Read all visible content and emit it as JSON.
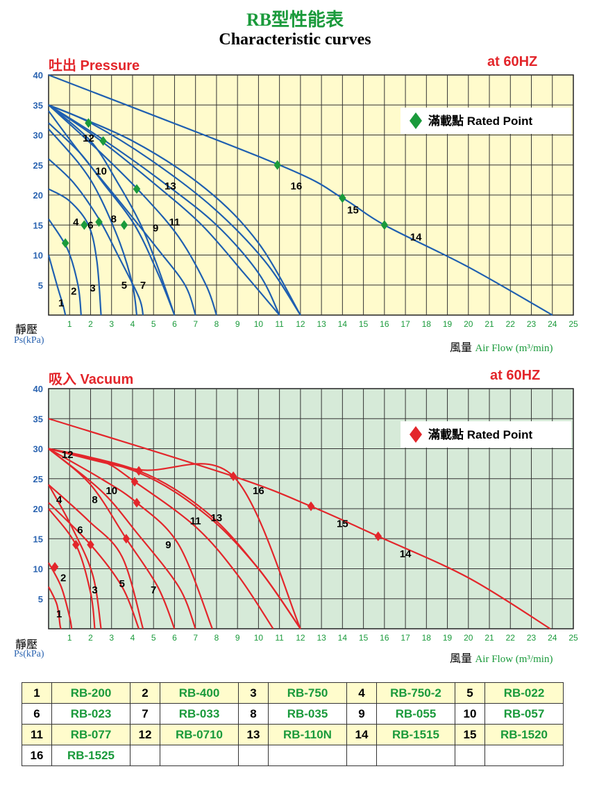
{
  "header": {
    "title_cn": "RB型性能表",
    "title_en": "Characteristic curves"
  },
  "colors": {
    "pressure_bg": "#fffbcc",
    "vacuum_bg": "#d6ead8",
    "pressure_curve": "#1f5fb0",
    "vacuum_curve": "#e3262b",
    "rated_pressure": "#1a9a3b",
    "rated_vacuum": "#e3262b",
    "axis_y_labels": "#2a63b0",
    "axis_x_labels": "#1a9a3b"
  },
  "chart_data": [
    {
      "type": "line",
      "section_label": "吐出 Pressure",
      "frequency": "at 60HZ",
      "ylabel": "靜壓",
      "ylabel_unit": "Ps(kPa)",
      "xlabel_cn": "風量",
      "xlabel_en": "Air Flow (m³/min)",
      "xlim": [
        0,
        25
      ],
      "ylim": [
        0,
        40
      ],
      "xticks": [
        1,
        2,
        3,
        4,
        5,
        6,
        7,
        8,
        9,
        10,
        11,
        12,
        13,
        14,
        15,
        16,
        17,
        18,
        19,
        20,
        21,
        22,
        23,
        24,
        25
      ],
      "yticks": [
        5,
        10,
        15,
        20,
        25,
        30,
        35,
        40
      ],
      "grid": true,
      "legend": {
        "label": "滿載點 Rated Point",
        "marker": "diamond",
        "placement": "top-right"
      },
      "series": [
        {
          "name": "1",
          "points": [
            [
              0,
              10
            ],
            [
              0.4,
              5
            ],
            [
              0.7,
              1.5
            ],
            [
              0.8,
              0
            ]
          ],
          "rated": null
        },
        {
          "name": "2",
          "points": [
            [
              0,
              16
            ],
            [
              0.9,
              11
            ],
            [
              1.4,
              5
            ],
            [
              1.55,
              0
            ]
          ],
          "rated": [
            0.8,
            12
          ]
        },
        {
          "name": "3",
          "points": [
            [
              0,
              21
            ],
            [
              1.0,
              19
            ],
            [
              1.9,
              15
            ],
            [
              2.3,
              9
            ],
            [
              2.5,
              0
            ]
          ],
          "rated": [
            1.7,
            15
          ]
        },
        {
          "name": "4",
          "points": [
            [
              0,
              26
            ],
            [
              1.2,
              22
            ],
            [
              2.4,
              16
            ],
            [
              3.3,
              10
            ],
            [
              4.3,
              3
            ],
            [
              4.5,
              0
            ]
          ],
          "rated": null
        },
        {
          "name": "5",
          "points": [
            [
              0,
              31
            ],
            [
              1.5,
              25
            ],
            [
              2.4,
              20
            ],
            [
              3.4,
              12
            ],
            [
              4.0,
              5
            ],
            [
              4.2,
              0
            ]
          ],
          "rated": [
            2.4,
            15.5
          ]
        },
        {
          "name": "6",
          "points": [
            [
              0,
              32
            ],
            [
              1.5,
              27
            ],
            [
              2.6,
              22
            ],
            [
              4.1,
              15
            ],
            [
              5.2,
              7
            ],
            [
              6.0,
              0
            ]
          ],
          "rated": null
        },
        {
          "name": "7",
          "points": [
            [
              0,
              35
            ],
            [
              2,
              29
            ],
            [
              3.3,
              22
            ],
            [
              4.4,
              15
            ],
            [
              5.2,
              8
            ],
            [
              6.0,
              0
            ]
          ],
          "rated": [
            3.6,
            15
          ]
        },
        {
          "name": "8",
          "points": [
            [
              0,
              34
            ],
            [
              1.5,
              27
            ],
            [
              3.6,
              18
            ],
            [
              5.2,
              11
            ],
            [
              6.5,
              5
            ],
            [
              7,
              0
            ]
          ],
          "rated": null
        },
        {
          "name": "9",
          "points": [
            [
              0,
              35
            ],
            [
              2.5,
              27
            ],
            [
              4.5,
              20
            ],
            [
              6.2,
              13
            ],
            [
              7.5,
              5
            ],
            [
              8,
              0
            ]
          ],
          "rated": [
            4.2,
            21
          ]
        },
        {
          "name": "10",
          "points": [
            [
              0,
              35
            ],
            [
              2.5,
              29
            ],
            [
              5.0,
              22
            ],
            [
              7.3,
              15
            ],
            [
              9.3,
              7
            ],
            [
              11,
              0
            ]
          ],
          "rated": [
            2.6,
            29
          ]
        },
        {
          "name": "11",
          "points": [
            [
              0,
              35
            ],
            [
              2.7,
              29
            ],
            [
              5.5,
              22
            ],
            [
              8,
              15
            ],
            [
              10,
              7
            ],
            [
              11,
              0
            ]
          ],
          "rated": null
        },
        {
          "name": "12",
          "points": [
            [
              0,
              35
            ],
            [
              2,
              32
            ],
            [
              4.8,
              26
            ],
            [
              7.8,
              18
            ],
            [
              10.3,
              9
            ],
            [
              12,
              0
            ]
          ],
          "rated": [
            1.9,
            32
          ]
        },
        {
          "name": "13",
          "points": [
            [
              0,
              35
            ],
            [
              4,
              29
            ],
            [
              7.5,
              21
            ],
            [
              10,
              12
            ],
            [
              12,
              0
            ]
          ],
          "rated": null
        },
        {
          "name": "16",
          "points": [
            [
              0,
              40
            ],
            [
              11,
              25
            ],
            [
              14,
              19.5
            ],
            [
              16,
              15
            ],
            [
              20,
              8
            ],
            [
              24,
              0
            ]
          ],
          "rated": [
            10.9,
            25
          ]
        },
        {
          "name": "15",
          "points": [
            [
              14,
              19.5
            ]
          ],
          "rated": [
            14,
            19.5
          ]
        },
        {
          "name": "14",
          "points": [
            [
              16,
              15
            ]
          ],
          "rated": [
            16,
            15
          ]
        }
      ],
      "curve_labels": [
        {
          "text": "1",
          "x": 0.6,
          "y": 2
        },
        {
          "text": "2",
          "x": 1.2,
          "y": 4
        },
        {
          "text": "3",
          "x": 2.1,
          "y": 4.5
        },
        {
          "text": "4",
          "x": 1.3,
          "y": 15.5
        },
        {
          "text": "5",
          "x": 3.6,
          "y": 5
        },
        {
          "text": "6",
          "x": 2.0,
          "y": 15
        },
        {
          "text": "7",
          "x": 4.5,
          "y": 5
        },
        {
          "text": "8",
          "x": 3.1,
          "y": 16
        },
        {
          "text": "9",
          "x": 5.1,
          "y": 14.5
        },
        {
          "text": "10",
          "x": 2.5,
          "y": 24
        },
        {
          "text": "11",
          "x": 6.0,
          "y": 15.5
        },
        {
          "text": "12",
          "x": 1.9,
          "y": 29.5
        },
        {
          "text": "13",
          "x": 5.8,
          "y": 21.5
        },
        {
          "text": "14",
          "x": 17.5,
          "y": 13
        },
        {
          "text": "15",
          "x": 14.5,
          "y": 17.5
        },
        {
          "text": "16",
          "x": 11.8,
          "y": 21.5
        }
      ]
    },
    {
      "type": "line",
      "section_label": "吸入 Vacuum",
      "frequency": "at 60HZ",
      "ylabel": "靜壓",
      "ylabel_unit": "Ps(kPa)",
      "xlabel_cn": "風量",
      "xlabel_en": "Air Flow (m³/min)",
      "xlim": [
        0,
        25
      ],
      "ylim": [
        0,
        40
      ],
      "xticks": [
        1,
        2,
        3,
        4,
        5,
        6,
        7,
        8,
        9,
        10,
        11,
        12,
        13,
        14,
        15,
        16,
        17,
        18,
        19,
        20,
        21,
        22,
        23,
        24,
        25
      ],
      "yticks": [
        5,
        10,
        15,
        20,
        25,
        30,
        35,
        40
      ],
      "grid": true,
      "legend": {
        "label": "滿載點 Rated Point",
        "marker": "diamond",
        "placement": "top-right"
      },
      "series": [
        {
          "name": "1",
          "points": [
            [
              0,
              7
            ],
            [
              0.4,
              4
            ],
            [
              0.55,
              0.5
            ],
            [
              0.6,
              0
            ]
          ],
          "rated": null
        },
        {
          "name": "2",
          "points": [
            [
              0,
              11
            ],
            [
              0.6,
              7
            ],
            [
              1.0,
              2
            ],
            [
              1.1,
              0
            ]
          ],
          "rated": [
            0.3,
            10.3
          ]
        },
        {
          "name": "3",
          "points": [
            [
              0,
              20
            ],
            [
              1.3,
              14
            ],
            [
              2.0,
              6
            ],
            [
              2.2,
              0
            ]
          ],
          "rated": [
            1.3,
            14
          ]
        },
        {
          "name": "4",
          "points": [
            [
              0,
              24
            ],
            [
              1.1,
              17
            ],
            [
              2.1,
              9
            ],
            [
              2.5,
              0
            ]
          ],
          "rated": null
        },
        {
          "name": "5",
          "points": [
            [
              0,
              21
            ],
            [
              2.0,
              14
            ],
            [
              3.5,
              7
            ],
            [
              4.3,
              0
            ]
          ],
          "rated": [
            2.0,
            14
          ]
        },
        {
          "name": "6",
          "points": [
            [
              0,
              24
            ],
            [
              1.9,
              18
            ],
            [
              3.5,
              12
            ],
            [
              4.5,
              0
            ]
          ],
          "rated": null
        },
        {
          "name": "7",
          "points": [
            [
              0,
              30
            ],
            [
              2.0,
              24
            ],
            [
              3.7,
              15
            ],
            [
              5.2,
              7
            ],
            [
              6,
              0
            ]
          ],
          "rated": [
            3.7,
            15
          ]
        },
        {
          "name": "8",
          "points": [
            [
              0,
              30
            ],
            [
              2.5,
              23
            ],
            [
              4.2,
              16
            ],
            [
              6.2,
              7
            ],
            [
              7,
              0
            ]
          ],
          "rated": null
        },
        {
          "name": "9",
          "points": [
            [
              0,
              30
            ],
            [
              2.5,
              25
            ],
            [
              4.2,
              21
            ],
            [
              6.2,
              14
            ],
            [
              7.8,
              0
            ]
          ],
          "rated": [
            4.2,
            21
          ]
        },
        {
          "name": "10",
          "points": [
            [
              0,
              30
            ],
            [
              2.5,
              28
            ],
            [
              4.1,
              24.5
            ],
            [
              7,
              17
            ],
            [
              9,
              9
            ],
            [
              10.7,
              0
            ]
          ],
          "rated": [
            4.1,
            24.5
          ]
        },
        {
          "name": "11",
          "points": [
            [
              0,
              30
            ],
            [
              4.3,
              26
            ],
            [
              7.5,
              19
            ],
            [
              10,
              10
            ],
            [
              12,
              0
            ]
          ],
          "rated": null
        },
        {
          "name": "12",
          "points": [
            [
              0,
              30
            ],
            [
              4.3,
              26.3
            ],
            [
              7.5,
              19.5
            ],
            [
              10,
              10
            ],
            [
              12,
              0
            ]
          ],
          "rated": [
            4.3,
            26.3
          ]
        },
        {
          "name": "13",
          "points": [
            [
              0,
              30
            ],
            [
              4.3,
              26.5
            ],
            [
              8.8,
              25.4
            ],
            [
              12,
              0
            ]
          ],
          "rated": null
        },
        {
          "name": "16",
          "points": [
            [
              0,
              35
            ],
            [
              8.8,
              25.4
            ],
            [
              12.5,
              20.4
            ],
            [
              15.7,
              15.4
            ],
            [
              20,
              8.5
            ],
            [
              23.9,
              0
            ]
          ],
          "rated": [
            8.8,
            25.4
          ]
        },
        {
          "name": "15",
          "points": [
            [
              12.5,
              20.4
            ]
          ],
          "rated": [
            12.5,
            20.4
          ]
        },
        {
          "name": "14",
          "points": [
            [
              15.7,
              15.4
            ]
          ],
          "rated": [
            15.7,
            15.4
          ]
        }
      ],
      "curve_labels": [
        {
          "text": "1",
          "x": 0.5,
          "y": 2.5
        },
        {
          "text": "2",
          "x": 0.7,
          "y": 8.5
        },
        {
          "text": "3",
          "x": 2.2,
          "y": 6.5
        },
        {
          "text": "4",
          "x": 0.5,
          "y": 21.5
        },
        {
          "text": "5",
          "x": 3.5,
          "y": 7.5
        },
        {
          "text": "6",
          "x": 1.5,
          "y": 16.5
        },
        {
          "text": "7",
          "x": 5.0,
          "y": 6.5
        },
        {
          "text": "8",
          "x": 2.2,
          "y": 21.5
        },
        {
          "text": "9",
          "x": 5.7,
          "y": 14
        },
        {
          "text": "10",
          "x": 3.0,
          "y": 23
        },
        {
          "text": "11",
          "x": 7.0,
          "y": 18
        },
        {
          "text": "12",
          "x": 0.9,
          "y": 29
        },
        {
          "text": "13",
          "x": 8.0,
          "y": 18.5
        },
        {
          "text": "14",
          "x": 17.0,
          "y": 12.5
        },
        {
          "text": "15",
          "x": 14.0,
          "y": 17.5
        },
        {
          "text": "16",
          "x": 10.0,
          "y": 23
        }
      ]
    }
  ],
  "model_table": {
    "rows": [
      [
        {
          "n": "1",
          "m": "RB-200"
        },
        {
          "n": "2",
          "m": "RB-400"
        },
        {
          "n": "3",
          "m": "RB-750"
        },
        {
          "n": "4",
          "m": "RB-750-2"
        },
        {
          "n": "5",
          "m": "RB-022"
        }
      ],
      [
        {
          "n": "6",
          "m": "RB-023"
        },
        {
          "n": "7",
          "m": "RB-033"
        },
        {
          "n": "8",
          "m": "RB-035"
        },
        {
          "n": "9",
          "m": "RB-055"
        },
        {
          "n": "10",
          "m": "RB-057"
        }
      ],
      [
        {
          "n": "11",
          "m": "RB-077"
        },
        {
          "n": "12",
          "m": "RB-0710"
        },
        {
          "n": "13",
          "m": "RB-110N"
        },
        {
          "n": "14",
          "m": "RB-1515"
        },
        {
          "n": "15",
          "m": "RB-1520"
        }
      ],
      [
        {
          "n": "16",
          "m": "RB-1525"
        },
        {
          "n": "",
          "m": ""
        },
        {
          "n": "",
          "m": ""
        },
        {
          "n": "",
          "m": ""
        },
        {
          "n": "",
          "m": ""
        }
      ]
    ]
  }
}
